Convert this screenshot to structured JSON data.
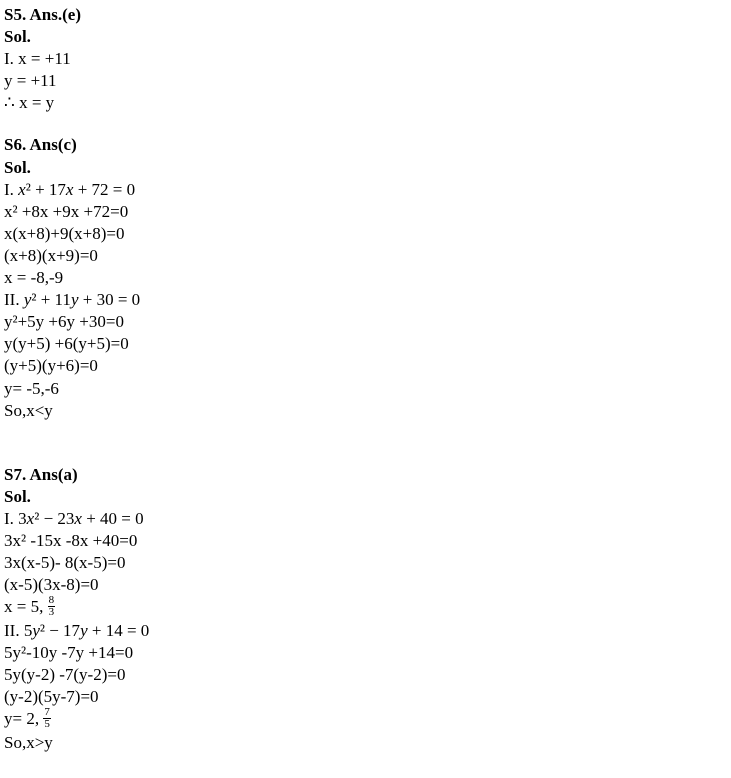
{
  "s5": {
    "heading": "S5. Ans.(e)",
    "sol": "Sol.",
    "lines": [
      "I. x = +11",
      "y = +11",
      "∴ x = y"
    ]
  },
  "s6": {
    "heading": "S6. Ans(c)",
    "sol": "Sol.",
    "eq1_prefix": "I. ",
    "eq1_var1": "x",
    "eq1_mid1": "² + 17",
    "eq1_var2": "x",
    "eq1_end": " + 72 = 0",
    "lines1": [
      "x² +8x +9x +72=0",
      "x(x+8)+9(x+8)=0",
      "(x+8)(x+9)=0",
      "x = -8,-9"
    ],
    "eq2_prefix": "II. ",
    "eq2_var1": "y",
    "eq2_mid1": "² + 11",
    "eq2_var2": "y",
    "eq2_end": " + 30 = 0",
    "lines2": [
      "y²+5y +6y +30=0",
      "y(y+5) +6(y+5)=0",
      "(y+5)(y+6)=0",
      "y= -5,-6",
      "So,x<y"
    ]
  },
  "s7": {
    "heading": "S7. Ans(a)",
    "sol": "Sol.",
    "eq1_prefix": "I. 3",
    "eq1_var1": "x",
    "eq1_mid1": "² − 23",
    "eq1_var2": "x",
    "eq1_end": " + 40 = 0",
    "lines1": [
      "3x² -15x -8x +40=0",
      "3x(x-5)- 8(x-5)=0",
      "(x-5)(3x-8)=0"
    ],
    "x_eq": "x = 5, ",
    "frac1_num": "8",
    "frac1_den": "3",
    "eq2_prefix": "II. 5",
    "eq2_var1": "y",
    "eq2_mid1": "² − 17",
    "eq2_var2": "y",
    "eq2_end": " + 14 = 0",
    "lines2": [
      "5y²-10y -7y +14=0",
      "5y(y-2) -7(y-2)=0",
      "(y-2)(5y-7)=0"
    ],
    "y_eq": "y= 2, ",
    "frac2_num": "7",
    "frac2_den": "5",
    "final": "So,x>y"
  }
}
